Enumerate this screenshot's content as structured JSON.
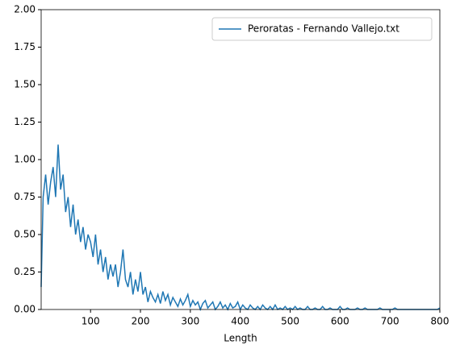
{
  "chart_data": {
    "type": "line",
    "xlabel": "Length",
    "legend": "upper right",
    "xlim": [
      1,
      800
    ],
    "xticks": [
      100,
      200,
      300,
      400,
      500,
      600,
      700,
      800
    ],
    "ylim": [
      0,
      2
    ],
    "yticks": [
      {
        "value": 0,
        "label": "0.00"
      },
      {
        "value": 0.25,
        "label": "0.25"
      },
      {
        "value": 0.5,
        "label": "0.50"
      },
      {
        "value": 0.75,
        "label": "0.75"
      },
      {
        "value": 1,
        "label": "1.00"
      },
      {
        "value": 1.25,
        "label": "1.25"
      },
      {
        "value": 1.5,
        "label": "1.50"
      },
      {
        "value": 1.75,
        "label": "1.75"
      },
      {
        "value": 2,
        "label": "2.00"
      }
    ],
    "x": [
      1,
      5,
      10,
      15,
      20,
      25,
      30,
      35,
      40,
      45,
      50,
      55,
      60,
      65,
      70,
      75,
      80,
      85,
      90,
      95,
      100,
      105,
      110,
      115,
      120,
      125,
      130,
      135,
      140,
      145,
      150,
      155,
      160,
      165,
      170,
      175,
      180,
      185,
      190,
      195,
      200,
      205,
      210,
      215,
      220,
      225,
      230,
      235,
      240,
      245,
      250,
      255,
      260,
      265,
      270,
      275,
      280,
      285,
      290,
      295,
      300,
      305,
      310,
      315,
      320,
      325,
      330,
      335,
      340,
      345,
      350,
      355,
      360,
      365,
      370,
      375,
      380,
      385,
      390,
      395,
      400,
      405,
      410,
      415,
      420,
      425,
      430,
      435,
      440,
      445,
      450,
      455,
      460,
      465,
      470,
      475,
      480,
      485,
      490,
      495,
      500,
      505,
      510,
      515,
      520,
      525,
      530,
      535,
      540,
      545,
      550,
      555,
      560,
      565,
      570,
      575,
      580,
      585,
      590,
      595,
      600,
      605,
      610,
      615,
      620,
      625,
      630,
      635,
      640,
      645,
      650,
      655,
      660,
      665,
      670,
      675,
      680,
      685,
      690,
      695,
      700,
      705,
      710,
      715,
      720,
      725,
      730,
      735,
      740,
      745,
      750,
      755,
      760,
      765,
      770,
      775,
      780,
      785,
      790,
      795,
      800
    ],
    "series": [
      {
        "name": "Peroratas - Fernando Vallejo.txt",
        "color": "#1f77b4",
        "values": [
          0.15,
          0.75,
          0.9,
          0.7,
          0.85,
          0.95,
          0.75,
          1.1,
          0.8,
          0.9,
          0.65,
          0.75,
          0.55,
          0.7,
          0.5,
          0.6,
          0.45,
          0.55,
          0.4,
          0.5,
          0.45,
          0.35,
          0.5,
          0.3,
          0.4,
          0.25,
          0.35,
          0.2,
          0.3,
          0.22,
          0.3,
          0.15,
          0.25,
          0.4,
          0.2,
          0.15,
          0.25,
          0.1,
          0.2,
          0.12,
          0.25,
          0.1,
          0.15,
          0.05,
          0.12,
          0.08,
          0.05,
          0.1,
          0.04,
          0.12,
          0.06,
          0.1,
          0.03,
          0.08,
          0.05,
          0.02,
          0.07,
          0.03,
          0.06,
          0.1,
          0.02,
          0.06,
          0.03,
          0.05,
          0,
          0.04,
          0.06,
          0.01,
          0.03,
          0.05,
          0,
          0.02,
          0.05,
          0.01,
          0.03,
          0,
          0.04,
          0.01,
          0.02,
          0.05,
          0,
          0.03,
          0.01,
          0,
          0.03,
          0.01,
          0,
          0.02,
          0,
          0.03,
          0.01,
          0,
          0.02,
          0,
          0.03,
          0,
          0.01,
          0,
          0.02,
          0,
          0.01,
          0,
          0.02,
          0,
          0.01,
          0,
          0,
          0.02,
          0,
          0,
          0.01,
          0,
          0,
          0.02,
          0,
          0,
          0.01,
          0,
          0,
          0,
          0.02,
          0,
          0,
          0.01,
          0,
          0,
          0,
          0.01,
          0,
          0,
          0.01,
          0,
          0,
          0,
          0,
          0,
          0.01,
          0,
          0,
          0,
          0,
          0,
          0.01,
          0,
          0,
          0,
          0,
          0,
          0,
          0,
          0,
          0,
          0,
          0,
          0,
          0,
          0,
          0,
          0,
          0,
          0.01
        ]
      }
    ]
  }
}
